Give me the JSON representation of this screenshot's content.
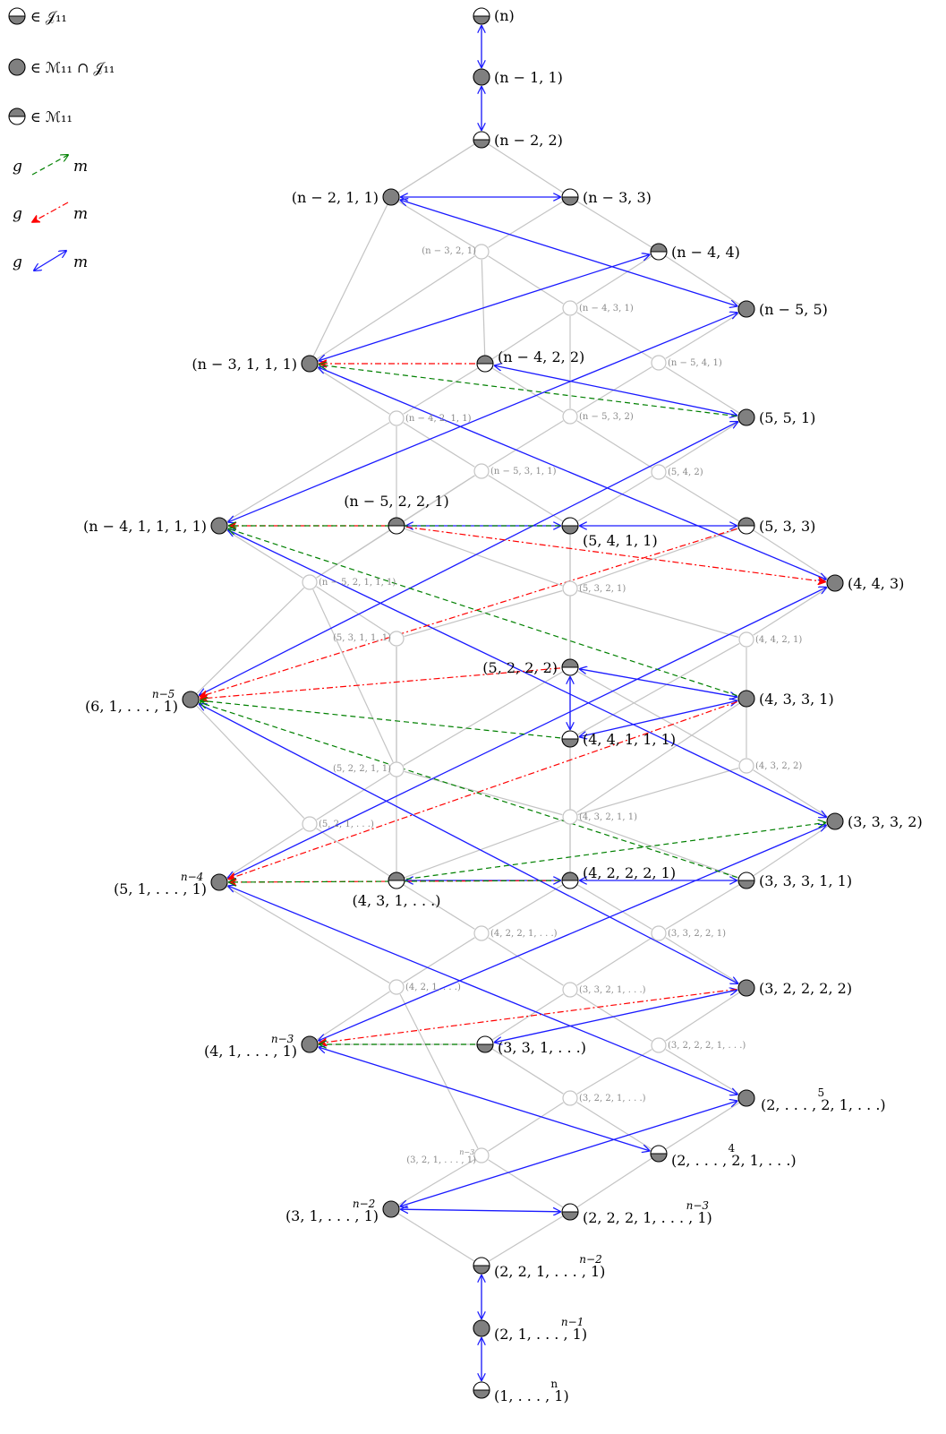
{
  "colors": {
    "node_fill": "#808080",
    "node_stroke": "#000000",
    "faint_node": "#c4c4c4",
    "hasse_edge": "#c4c4c4",
    "blue_arrow": "#1a1aff",
    "red_arrow": "#ff0000",
    "green_arrow": "#008000"
  },
  "legend": {
    "items": [
      {
        "marker": "half-bottom",
        "text": "∈ 𝒥₁₁"
      },
      {
        "marker": "full",
        "text": "∈ ℳ₁₁ ∩ 𝒥₁₁"
      },
      {
        "marker": "half-top",
        "text": "∈ ℳ₁₁"
      }
    ],
    "arrows": [
      {
        "style": "green",
        "from": "g",
        "to": "m"
      },
      {
        "style": "red",
        "from": "g",
        "to": "m"
      },
      {
        "style": "blue",
        "from": "g",
        "to": "m"
      }
    ]
  },
  "nodes": {
    "n": {
      "label": "(n)",
      "type": "half-bottom"
    },
    "n11": {
      "label": "(n − 1, 1)",
      "type": "full"
    },
    "n22": {
      "label": "(n − 2, 2)",
      "type": "half-bottom"
    },
    "n211": {
      "label": "(n − 2, 1, 1)",
      "type": "full"
    },
    "n33": {
      "label": "(n − 3, 3)",
      "type": "half-bottom"
    },
    "n321": {
      "label": "(n − 3, 2, 1)",
      "type": "faint"
    },
    "n44": {
      "label": "(n − 4, 4)",
      "type": "half-top"
    },
    "n431": {
      "label": "(n − 4, 3, 1)",
      "type": "faint"
    },
    "n55": {
      "label": "(n − 5, 5)",
      "type": "full"
    },
    "n3111": {
      "label": "(n − 3, 1, 1, 1)",
      "type": "full"
    },
    "n422": {
      "label": "(n − 4, 2, 2)",
      "type": "half-top"
    },
    "n541": {
      "label": "(n − 5, 4, 1)",
      "type": "faint"
    },
    "p551": {
      "label": "(5, 5, 1)",
      "type": "full"
    },
    "n4211": {
      "label": "(n − 4, 2, 1, 1)",
      "type": "faint"
    },
    "n532": {
      "label": "(n − 5, 3, 2)",
      "type": "faint"
    },
    "n5311": {
      "label": "(n − 5, 3, 1, 1)",
      "type": "faint"
    },
    "p542": {
      "label": "(5, 4, 2)",
      "type": "faint"
    },
    "n41111": {
      "label": "(n − 4, 1, 1, 1, 1)",
      "type": "full"
    },
    "n5221": {
      "label": "(n − 5, 2, 2, 1)",
      "type": "half-top"
    },
    "p5411": {
      "label": "(5, 4, 1, 1)",
      "type": "half-bottom"
    },
    "p533": {
      "label": "(5, 3, 3)",
      "type": "half-top"
    },
    "p443": {
      "label": "(4, 4, 3)",
      "type": "full"
    },
    "n52111": {
      "label": "(n − 5, 2, 1, 1, 1)",
      "type": "faint"
    },
    "p5321": {
      "label": "(5, 3, 2, 1)",
      "type": "faint"
    },
    "p53111": {
      "label": "(5, 3, 1, 1, 1)",
      "type": "faint"
    },
    "p4421": {
      "label": "(4, 4, 2, 1)",
      "type": "faint"
    },
    "p61": {
      "label": "(6, 1, . . . , 1)",
      "sup": "n−5",
      "type": "full"
    },
    "p5222": {
      "label": "(5, 2, 2, 2)",
      "type": "half-top"
    },
    "p4331": {
      "label": "(4, 3, 3, 1)",
      "type": "full"
    },
    "p44111": {
      "label": "(4, 4, 1, 1, 1)",
      "type": "half-bottom"
    },
    "p52211": {
      "label": "(5, 2, 2, 1, 1)",
      "type": "faint"
    },
    "p4322": {
      "label": "(4, 3, 2, 2)",
      "type": "faint"
    },
    "p521": {
      "label": "(5, 2, 1, . . .)",
      "type": "faint"
    },
    "p43211": {
      "label": "(4, 3, 2, 1, 1)",
      "type": "faint"
    },
    "p3332": {
      "label": "(3, 3, 3, 2)",
      "type": "full"
    },
    "p51": {
      "label": "(5, 1, . . . , 1)",
      "sup": "n−4",
      "type": "full"
    },
    "p431": {
      "label": "(4, 3, 1, . . .)",
      "type": "half-top"
    },
    "p42221": {
      "label": "(4, 2, 2, 2, 1)",
      "type": "half-top"
    },
    "p33311": {
      "label": "(3, 3, 3, 1, 1)",
      "type": "half-bottom"
    },
    "p4221": {
      "label": "(4, 2, 2, 1, . . .)",
      "type": "faint"
    },
    "p33221": {
      "label": "(3, 3, 2, 2, 1)",
      "type": "faint"
    },
    "p421": {
      "label": "(4, 2, 1, . . .)",
      "type": "faint"
    },
    "p3321": {
      "label": "(3, 3, 2, 1, . . .)",
      "type": "faint"
    },
    "p32222": {
      "label": "(3, 2, 2, 2, 2)",
      "type": "full"
    },
    "p41": {
      "label": "(4, 1, . . . , 1)",
      "sup": "n−3",
      "type": "full"
    },
    "p331": {
      "label": "(3, 3, 1, . . .)",
      "type": "half-bottom"
    },
    "p32221": {
      "label": "(3, 2, 2, 2, 1, . . .)",
      "type": "faint"
    },
    "p3221": {
      "label": "(3, 2, 2, 1, . . .)",
      "type": "faint"
    },
    "p2521": {
      "label": "(2, . . . , 2, 1, . . .)",
      "sup": "5",
      "type": "full"
    },
    "p321": {
      "label": "(3, 2, 1, . . . , 1)",
      "sup": "n−3",
      "type": "faint"
    },
    "p2421": {
      "label": "(2, . . . , 2, 1, . . .)",
      "sup": "4",
      "type": "half-bottom"
    },
    "p31": {
      "label": "(3, 1, . . . , 1)",
      "sup": "n−2",
      "type": "full"
    },
    "p2221": {
      "label": "(2, 2, 2, 1, . . . , 1)",
      "sup": "n−3",
      "type": "half-bottom"
    },
    "p221": {
      "label": "(2, 2, 1, . . . , 1)",
      "sup": "n−2",
      "type": "half-bottom"
    },
    "p21": {
      "label": "(2, 1, . . . , 1)",
      "sup": "n−1",
      "type": "full"
    },
    "p1": {
      "label": "(1, . . . , 1)",
      "sup": "n",
      "type": "half-bottom"
    }
  }
}
